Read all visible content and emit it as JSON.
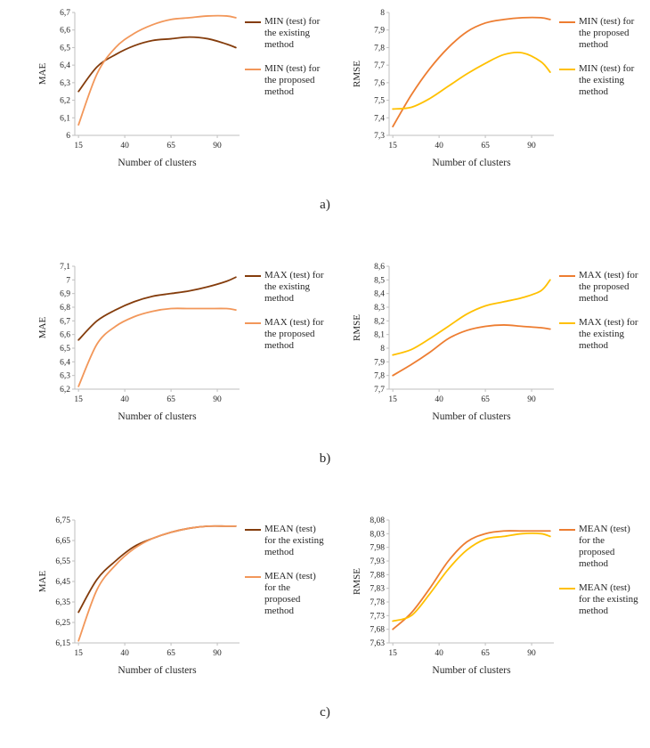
{
  "figure": {
    "background": "#ffffff"
  },
  "rows": [
    {
      "label": "a)"
    },
    {
      "label": "b)"
    },
    {
      "label": "c)"
    }
  ],
  "axis_style": {
    "line_color": "#BFBFBF",
    "text_color": "#262626"
  },
  "chart_data": [
    {
      "type": "line",
      "title": "",
      "ylabel": "MAE",
      "xlabel": "Number of clusters",
      "ymin": 6.0,
      "ymax": 6.7,
      "xmin": 13,
      "xmax": 102,
      "xticks": [
        15,
        40,
        65,
        90
      ],
      "yticks": [
        {
          "v": 6.0,
          "label": "6"
        },
        {
          "v": 6.1,
          "label": "6,1"
        },
        {
          "v": 6.2,
          "label": "6,2"
        },
        {
          "v": 6.3,
          "label": "6,3"
        },
        {
          "v": 6.4,
          "label": "6,4"
        },
        {
          "v": 6.5,
          "label": "6,5"
        },
        {
          "v": 6.6,
          "label": "6,6"
        },
        {
          "v": 6.7,
          "label": "6,7"
        }
      ],
      "x": [
        15,
        25,
        35,
        45,
        55,
        65,
        75,
        85,
        95,
        100
      ],
      "series": [
        {
          "name": "MIN (test) for the existing method",
          "color": "#843C0C",
          "values": [
            6.25,
            6.39,
            6.46,
            6.51,
            6.54,
            6.55,
            6.56,
            6.55,
            6.52,
            6.5
          ]
        },
        {
          "name": "MIN (test) for the proposed method",
          "color": "#F2975A",
          "values": [
            6.06,
            6.35,
            6.5,
            6.58,
            6.63,
            6.66,
            6.67,
            6.68,
            6.68,
            6.67
          ]
        }
      ]
    },
    {
      "type": "line",
      "title": "",
      "ylabel": "RMSE",
      "xlabel": "Number of clusters",
      "ymin": 7.3,
      "ymax": 8.0,
      "xmin": 13,
      "xmax": 102,
      "xticks": [
        15,
        40,
        65,
        90
      ],
      "yticks": [
        {
          "v": 7.3,
          "label": "7,3"
        },
        {
          "v": 7.4,
          "label": "7,4"
        },
        {
          "v": 7.5,
          "label": "7,5"
        },
        {
          "v": 7.6,
          "label": "7,6"
        },
        {
          "v": 7.7,
          "label": "7,7"
        },
        {
          "v": 7.8,
          "label": "7,8"
        },
        {
          "v": 7.9,
          "label": "7,9"
        },
        {
          "v": 8.0,
          "label": "8"
        }
      ],
      "x": [
        15,
        25,
        35,
        45,
        55,
        65,
        75,
        85,
        95,
        100
      ],
      "series": [
        {
          "name": "MIN (test) for the proposed method",
          "color": "#ED7D31",
          "values": [
            7.35,
            7.53,
            7.68,
            7.8,
            7.89,
            7.94,
            7.96,
            7.97,
            7.97,
            7.96
          ]
        },
        {
          "name": "MIN (test) for the existing method",
          "color": "#FFC000",
          "values": [
            7.45,
            7.46,
            7.51,
            7.58,
            7.65,
            7.71,
            7.76,
            7.77,
            7.72,
            7.66
          ]
        }
      ]
    },
    {
      "type": "line",
      "title": "",
      "ylabel": "MAE",
      "xlabel": "Number of clusters",
      "ymin": 6.2,
      "ymax": 7.1,
      "xmin": 13,
      "xmax": 102,
      "xticks": [
        15,
        40,
        65,
        90
      ],
      "yticks": [
        {
          "v": 6.2,
          "label": "6,2"
        },
        {
          "v": 6.3,
          "label": "6,3"
        },
        {
          "v": 6.4,
          "label": "6,4"
        },
        {
          "v": 6.5,
          "label": "6,5"
        },
        {
          "v": 6.6,
          "label": "6,6"
        },
        {
          "v": 6.7,
          "label": "6,7"
        },
        {
          "v": 6.8,
          "label": "6,8"
        },
        {
          "v": 6.9,
          "label": "6,9"
        },
        {
          "v": 7.0,
          "label": "7"
        },
        {
          "v": 7.1,
          "label": "7,1"
        }
      ],
      "x": [
        15,
        25,
        35,
        45,
        55,
        65,
        75,
        85,
        95,
        100
      ],
      "series": [
        {
          "name": "MAX (test) for the existing method",
          "color": "#843C0C",
          "values": [
            6.56,
            6.7,
            6.78,
            6.84,
            6.88,
            6.9,
            6.92,
            6.95,
            6.99,
            7.02
          ]
        },
        {
          "name": "MAX (test) for the proposed method",
          "color": "#F2975A",
          "values": [
            6.22,
            6.53,
            6.66,
            6.73,
            6.77,
            6.79,
            6.79,
            6.79,
            6.79,
            6.78
          ]
        }
      ]
    },
    {
      "type": "line",
      "title": "",
      "ylabel": "RMSE",
      "xlabel": "Number of clusters",
      "ymin": 7.7,
      "ymax": 8.6,
      "xmin": 13,
      "xmax": 102,
      "xticks": [
        15,
        40,
        65,
        90
      ],
      "yticks": [
        {
          "v": 7.7,
          "label": "7,7"
        },
        {
          "v": 7.8,
          "label": "7,8"
        },
        {
          "v": 7.9,
          "label": "7,9"
        },
        {
          "v": 8.0,
          "label": "8"
        },
        {
          "v": 8.1,
          "label": "8,1"
        },
        {
          "v": 8.2,
          "label": "8,2"
        },
        {
          "v": 8.3,
          "label": "8,3"
        },
        {
          "v": 8.4,
          "label": "8,4"
        },
        {
          "v": 8.5,
          "label": "8,5"
        },
        {
          "v": 8.6,
          "label": "8,6"
        }
      ],
      "x": [
        15,
        25,
        35,
        45,
        55,
        65,
        75,
        85,
        95,
        100
      ],
      "series": [
        {
          "name": "MAX (test) for the proposed method",
          "color": "#ED7D31",
          "values": [
            7.8,
            7.88,
            7.97,
            8.07,
            8.13,
            8.16,
            8.17,
            8.16,
            8.15,
            8.14
          ]
        },
        {
          "name": "MAX (test) for the existing method",
          "color": "#FFC000",
          "values": [
            7.95,
            7.99,
            8.07,
            8.16,
            8.25,
            8.31,
            8.34,
            8.37,
            8.42,
            8.5
          ]
        }
      ]
    },
    {
      "type": "line",
      "title": "",
      "ylabel": "MAE",
      "xlabel": "Number of clusters",
      "ymin": 6.15,
      "ymax": 6.75,
      "xmin": 13,
      "xmax": 102,
      "xticks": [
        15,
        40,
        65,
        90
      ],
      "yticks": [
        {
          "v": 6.15,
          "label": "6,15"
        },
        {
          "v": 6.25,
          "label": "6,25"
        },
        {
          "v": 6.35,
          "label": "6,35"
        },
        {
          "v": 6.45,
          "label": "6,45"
        },
        {
          "v": 6.55,
          "label": "6,55"
        },
        {
          "v": 6.65,
          "label": "6,65"
        },
        {
          "v": 6.75,
          "label": "6,75"
        }
      ],
      "x": [
        15,
        25,
        35,
        45,
        55,
        65,
        75,
        85,
        95,
        100
      ],
      "series": [
        {
          "name": "MEAN (test) for the existing method",
          "color": "#843C0C",
          "values": [
            6.3,
            6.46,
            6.55,
            6.62,
            6.66,
            6.69,
            6.71,
            6.72,
            6.72,
            6.72
          ]
        },
        {
          "name": "MEAN (test) for the proposed method",
          "color": "#F2975A",
          "values": [
            6.16,
            6.41,
            6.53,
            6.61,
            6.66,
            6.69,
            6.71,
            6.72,
            6.72,
            6.72
          ]
        }
      ]
    },
    {
      "type": "line",
      "title": "",
      "ylabel": "RMSE",
      "xlabel": "Number of clusters",
      "ymin": 7.63,
      "ymax": 8.08,
      "xmin": 13,
      "xmax": 102,
      "xticks": [
        15,
        40,
        65,
        90
      ],
      "yticks": [
        {
          "v": 7.63,
          "label": "7,63"
        },
        {
          "v": 7.68,
          "label": "7,68"
        },
        {
          "v": 7.73,
          "label": "7,73"
        },
        {
          "v": 7.78,
          "label": "7,78"
        },
        {
          "v": 7.83,
          "label": "7,83"
        },
        {
          "v": 7.88,
          "label": "7,88"
        },
        {
          "v": 7.93,
          "label": "7,93"
        },
        {
          "v": 7.98,
          "label": "7,98"
        },
        {
          "v": 8.03,
          "label": "8,03"
        },
        {
          "v": 8.08,
          "label": "8,08"
        }
      ],
      "x": [
        15,
        25,
        35,
        45,
        55,
        65,
        75,
        85,
        95,
        100
      ],
      "series": [
        {
          "name": "MEAN (test) for the proposed method",
          "color": "#ED7D31",
          "values": [
            7.68,
            7.74,
            7.83,
            7.93,
            8.0,
            8.03,
            8.04,
            8.04,
            8.04,
            8.04
          ]
        },
        {
          "name": "MEAN (test) for the existing method",
          "color": "#FFC000",
          "values": [
            7.71,
            7.73,
            7.81,
            7.9,
            7.97,
            8.01,
            8.02,
            8.03,
            8.03,
            8.02
          ]
        }
      ]
    }
  ]
}
